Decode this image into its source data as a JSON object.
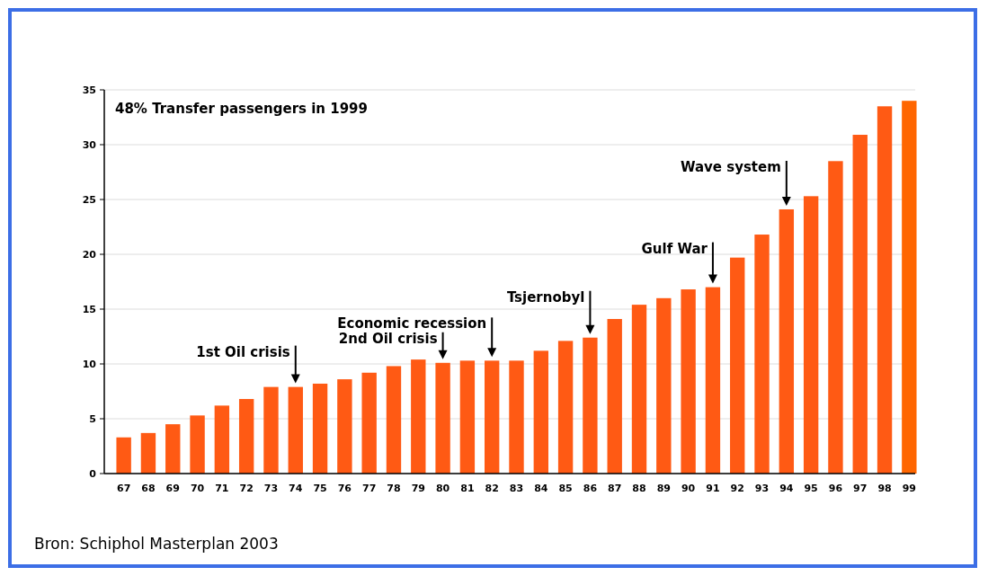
{
  "chart_data": {
    "type": "bar",
    "categories": [
      "67",
      "68",
      "69",
      "70",
      "71",
      "72",
      "73",
      "74",
      "75",
      "76",
      "77",
      "78",
      "79",
      "80",
      "81",
      "82",
      "83",
      "84",
      "85",
      "86",
      "87",
      "88",
      "89",
      "90",
      "91",
      "92",
      "93",
      "94",
      "95",
      "96",
      "97",
      "98",
      "99"
    ],
    "values": [
      3.3,
      3.7,
      4.5,
      5.3,
      6.2,
      6.8,
      7.9,
      7.9,
      8.2,
      8.6,
      9.2,
      9.8,
      10.4,
      10.1,
      10.3,
      10.3,
      10.3,
      11.2,
      12.1,
      12.4,
      14.1,
      15.4,
      16.0,
      16.8,
      17.0,
      19.7,
      21.8,
      24.1,
      25.3,
      28.5,
      30.9,
      33.5,
      34.0
    ],
    "colors": [
      "#ff5a14",
      "#ff5a14",
      "#ff5a14",
      "#ff5a14",
      "#ff5a14",
      "#ff5a14",
      "#ff5a14",
      "#ff5a14",
      "#ff5a14",
      "#ff5a14",
      "#ff5a14",
      "#ff5a14",
      "#ff5a14",
      "#ff5a14",
      "#ff5a14",
      "#ff5a14",
      "#ff5a14",
      "#ff5a14",
      "#ff5a14",
      "#ff5a14",
      "#ff5a14",
      "#ff5a14",
      "#ff5a14",
      "#ff5a14",
      "#ff5a14",
      "#ff5a14",
      "#ff5a14",
      "#ff5a14",
      "#ff5a14",
      "#ff5a14",
      "#ff5a14",
      "#ff5a14",
      "#ff6600"
    ],
    "ylim": [
      0,
      35
    ],
    "yticks": [
      0,
      5,
      10,
      15,
      20,
      25,
      30,
      35
    ],
    "grid": "y",
    "annotations": [
      "48% Transfer passengers in 1999",
      {
        "text": "1st Oil crisis",
        "x": "74",
        "y": 7.9
      },
      {
        "text": "2nd Oil crisis",
        "x": "80",
        "y": 10.1
      },
      {
        "text": "Economic recession",
        "x": "82",
        "y": 10.3
      },
      {
        "text": "Tsjernobyl",
        "x": "86",
        "y": 12.4
      },
      {
        "text": "Gulf War",
        "x": "91",
        "y": 17.0
      },
      {
        "text": "Wave system",
        "x": "94",
        "y": 24.1
      },
      "Bron: Schiphol Masterplan 2003"
    ]
  }
}
